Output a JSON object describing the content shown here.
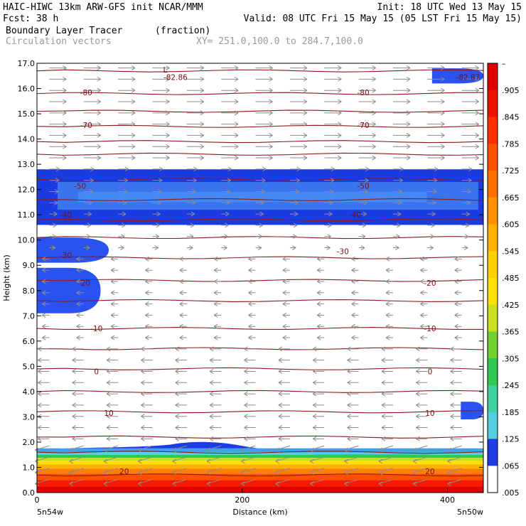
{
  "header": {
    "line1_left": "HAIC-HIWC 13km ARW-GFS init   NCAR/MMM",
    "line1_right": "Init: 18 UTC Wed 13 May 15",
    "line2_left": "Fcst:   38 h",
    "line2_right": "Valid: 08 UTC Fri 15 May 15 (05 LST Fri 15 May 15)",
    "line3_left": "Boundary Layer Tracer",
    "line3_mid": "(fraction)",
    "line4_left": "Circulation vectors",
    "line4_mid": "XY= 251.0,100.0 to 284.7,100.0"
  },
  "colors": {
    "contour": "#8b1a1a",
    "arrow": "#8c8c8c",
    "scale": [
      "#ffffff",
      "#1e3ce6",
      "#2b5cf0",
      "#3fa0f0",
      "#55cfe0",
      "#40d0a0",
      "#30c850",
      "#70d030",
      "#c8e020",
      "#ffe000",
      "#ffb000",
      "#ff8000",
      "#ff5000",
      "#f81a00",
      "#e00000"
    ]
  },
  "chart_data": {
    "type": "contour",
    "title": "Boundary Layer Tracer",
    "units": "(fraction)",
    "xlabel": "Distance (km)",
    "ylabel": "Height (km)",
    "xlim": [
      0,
      435
    ],
    "ylim": [
      0.0,
      17.0
    ],
    "x_ticks": [
      "0",
      "200",
      "400"
    ],
    "y_ticks": [
      "0.0",
      "1.0",
      "2.0",
      "3.0",
      "4.0",
      "5.0",
      "6.0",
      "7.0",
      "8.0",
      "9.0",
      "10.0",
      "11.0",
      "12.0",
      "13.0",
      "14.0",
      "15.0",
      "16.0",
      "17.0"
    ],
    "x_end_labels": {
      "left": "5n54w",
      "right": "5n50w"
    },
    "colorbar_labels": [
      "–",
      ".905",
      ".845",
      ".785",
      ".725",
      ".665",
      ".605",
      ".545",
      ".485",
      ".425",
      ".365",
      ".305",
      ".245",
      ".185",
      ".125",
      ".065",
      ".005"
    ],
    "contour_annotations": [
      {
        "text": "L",
        "x": 125,
        "y": 16.75
      },
      {
        "text": "-82.86",
        "x": 135,
        "y": 16.45
      },
      {
        "text": "-82.87",
        "x": 420,
        "y": 16.45
      },
      {
        "text": "-80",
        "x": 48,
        "y": 15.85
      },
      {
        "text": "-80",
        "x": 318,
        "y": 15.85
      },
      {
        "text": "-70",
        "x": 48,
        "y": 14.55
      },
      {
        "text": "-70",
        "x": 318,
        "y": 14.55
      },
      {
        "text": "-50",
        "x": 42,
        "y": 12.15
      },
      {
        "text": "-50",
        "x": 318,
        "y": 12.15
      },
      {
        "text": "-40",
        "x": 28,
        "y": 11.0
      },
      {
        "text": "-40",
        "x": 310,
        "y": 11.0
      },
      {
        "text": "-30",
        "x": 28,
        "y": 9.4
      },
      {
        "text": "-30",
        "x": 298,
        "y": 9.55
      },
      {
        "text": "-20",
        "x": 46,
        "y": 8.3
      },
      {
        "text": "-20",
        "x": 383,
        "y": 8.3
      },
      {
        "text": "-10",
        "x": 58,
        "y": 6.5
      },
      {
        "text": "-10",
        "x": 383,
        "y": 6.5
      },
      {
        "text": "0",
        "x": 58,
        "y": 4.8
      },
      {
        "text": "0",
        "x": 383,
        "y": 4.8
      },
      {
        "text": "10",
        "x": 70,
        "y": 3.15
      },
      {
        "text": "10",
        "x": 383,
        "y": 3.15
      },
      {
        "text": "20",
        "x": 85,
        "y": 0.85
      },
      {
        "text": "20",
        "x": 383,
        "y": 0.85
      }
    ],
    "contour_levels_km": [
      0.7,
      1.6,
      2.2,
      3.2,
      4.0,
      4.9,
      5.7,
      6.5,
      7.6,
      8.4,
      9.3,
      10.1,
      10.8,
      11.6,
      12.4,
      13.4,
      13.9,
      14.5,
      15.1,
      15.8,
      16.7
    ],
    "tracer_regions": [
      {
        "name": "upper outflow layer",
        "xlim": [
          0,
          435
        ],
        "ylim": [
          10.6,
          12.8
        ],
        "fraction": 0.03
      },
      {
        "name": "left blob 9.5km",
        "xlim": [
          0,
          70
        ],
        "ylim": [
          9.1,
          10.1
        ],
        "fraction": 0.02
      },
      {
        "name": "left blob 8km",
        "xlim": [
          0,
          62
        ],
        "ylim": [
          7.1,
          8.9
        ],
        "fraction": 0.02
      },
      {
        "name": "top right patch",
        "xlim": [
          385,
          435
        ],
        "ylim": [
          16.2,
          16.8
        ],
        "fraction": 0.02
      },
      {
        "name": "right patch 3.5km",
        "xlim": [
          413,
          435
        ],
        "ylim": [
          2.9,
          3.6
        ],
        "fraction": 0.02
      },
      {
        "name": "boundary layer",
        "xlim": [
          0,
          435
        ],
        "ylim": [
          0.0,
          2.1
        ],
        "fraction_max": 1.0
      }
    ],
    "wind_regime": [
      {
        "layer": "13-17 km",
        "direction": "eastward (rightward)"
      },
      {
        "layer": "9.5-13 km",
        "direction": "eastward, weaker"
      },
      {
        "layer": "0-9.5 km",
        "direction": "westward (leftward)"
      }
    ]
  }
}
